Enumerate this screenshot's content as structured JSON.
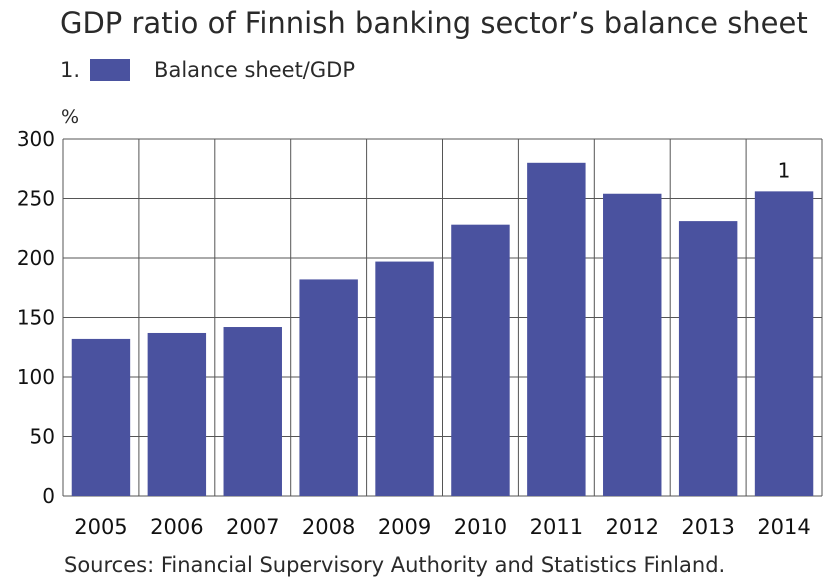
{
  "chart_data": {
    "type": "bar",
    "title": "GDP ratio of Finnish banking sector’s balance sheet",
    "unit": "%",
    "categories": [
      "2005",
      "2006",
      "2007",
      "2008",
      "2009",
      "2010",
      "2011",
      "2012",
      "2013",
      "2014"
    ],
    "series": [
      {
        "name": "Balance sheet/GDP",
        "legend_number": "1.",
        "values": [
          132,
          137,
          142,
          182,
          197,
          228,
          280,
          254,
          231,
          256
        ],
        "color": "#4a529f"
      }
    ],
    "annotations": [
      {
        "category": "2014",
        "text": "1"
      }
    ],
    "ylim": [
      0,
      300
    ],
    "yticks": [
      0,
      50,
      100,
      150,
      200,
      250,
      300
    ],
    "grid": true,
    "legend_position": "top-left",
    "source": "Sources: Financial Supervisory Authority and Statistics Finland."
  }
}
